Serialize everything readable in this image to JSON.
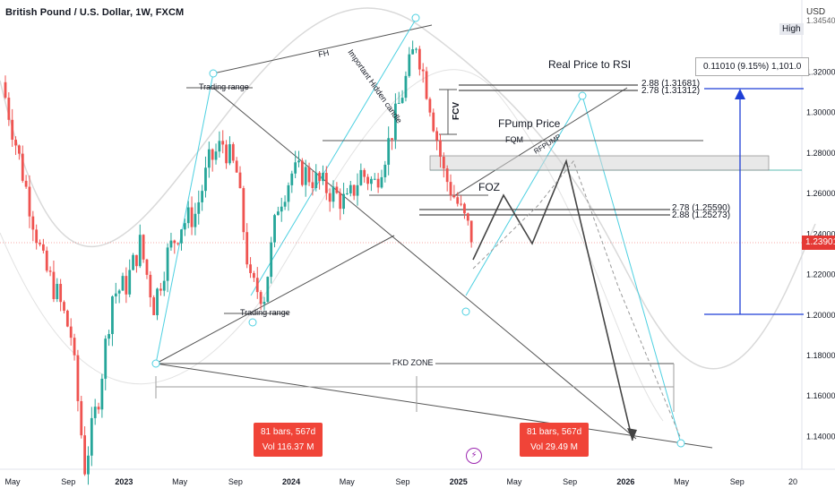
{
  "header": {
    "title": "British Pound / U.S. Dollar, 1W, FXCM",
    "currency": "USD",
    "high_label": "High"
  },
  "price_tag": "1.23901",
  "chart_data": {
    "type": "candlestick",
    "title": "British Pound / U.S. Dollar, 1W, FXCM",
    "ylim": [
      1.13,
      1.345
    ],
    "y_ticks": [
      "1.34540",
      "1.32000",
      "1.30000",
      "1.28000",
      "1.26000",
      "1.24000",
      "1.22000",
      "1.20000",
      "1.18000",
      "1.16000",
      "1.14000"
    ],
    "x_ticks": [
      "May",
      "Sep",
      "2023",
      "May",
      "Sep",
      "2024",
      "May",
      "Sep",
      "2025",
      "May",
      "Sep",
      "2026",
      "May",
      "Sep",
      "20"
    ],
    "grid": false,
    "last_price": 1.23901,
    "series": [
      {
        "x": [
          "2022-03",
          "2022-04",
          "2022-05",
          "2022-06",
          "2022-07",
          "2022-08",
          "2022-09",
          "2022-10",
          "2022-11",
          "2022-12",
          "2023-01",
          "2023-02",
          "2023-03",
          "2023-04",
          "2023-05",
          "2023-06",
          "2023-07",
          "2023-08",
          "2023-09",
          "2023-10",
          "2023-11",
          "2023-12",
          "2024-01",
          "2024-02",
          "2024-03",
          "2024-04",
          "2024-05",
          "2024-06",
          "2024-07",
          "2024-08",
          "2024-09",
          "2024-10",
          "2024-11",
          "2024-12",
          "2025-01"
        ],
        "close": [
          1.315,
          1.285,
          1.255,
          1.225,
          1.21,
          1.19,
          1.125,
          1.16,
          1.21,
          1.215,
          1.235,
          1.205,
          1.23,
          1.245,
          1.25,
          1.275,
          1.285,
          1.27,
          1.215,
          1.21,
          1.255,
          1.27,
          1.27,
          1.265,
          1.26,
          1.255,
          1.27,
          1.265,
          1.285,
          1.31,
          1.335,
          1.305,
          1.27,
          1.255,
          1.239
        ]
      }
    ],
    "annotations": {
      "trading_range_top": "Trading range",
      "trading_range_bottom": "Trading range",
      "important_hidden_candle": "Important Hidden candle",
      "fh": "FH",
      "real_price_to_rsi": "Real Price to RSI",
      "fpump_price": "FPump Price",
      "fqm": "FQM",
      "rfpump": "RFPUMP",
      "fcv": "FCV",
      "foz": "FOZ",
      "fkd_zone": "FKD ZONE",
      "level_288_top": "2.88 (1.31681)",
      "level_278_top": "2.78 (1.31312)",
      "level_278_low": "2.78 (1.25590)",
      "level_288_low": "2.88 (1.25273)",
      "measure": "0.11010 (9.15%) 1,101.0"
    },
    "stat_boxes": [
      {
        "bars": "81 bars, 567d",
        "vol": "Vol 116.37 M"
      },
      {
        "bars": "81 bars, 567d",
        "vol": "Vol 29.49 M"
      }
    ],
    "colors": {
      "up": "#26a69a",
      "down": "#ef5350",
      "projection": "#555555",
      "measure": "#1e3fd6",
      "cyan": "#4dd0e1",
      "faint_curve": "#cfcfcf"
    }
  }
}
